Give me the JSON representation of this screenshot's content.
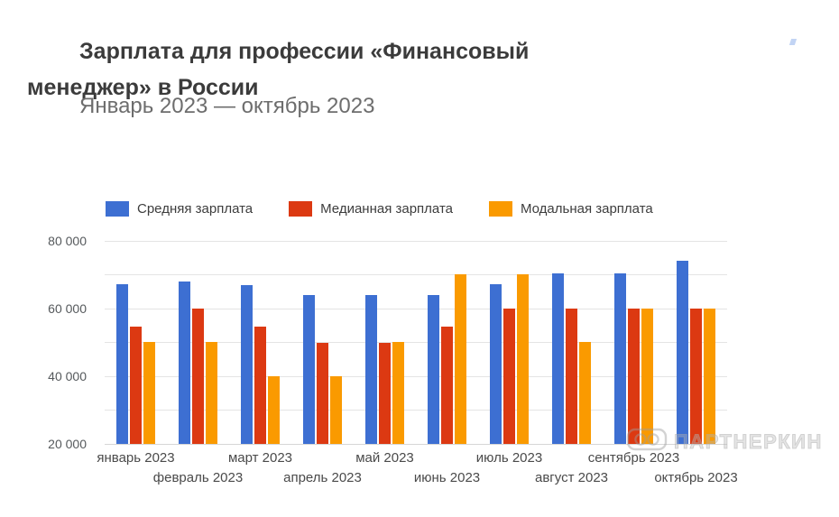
{
  "header": {
    "title_line1": "Зарплата для профессии «Финансовый",
    "title_line2": "менеджер» в России",
    "subtitle": "Январь 2023 — октябрь 2023"
  },
  "watermark": {
    "text": "ПАРТНЕРКИН",
    "logo": "goggles-icon"
  },
  "chart_data": {
    "type": "bar",
    "title": "Зарплата для профессии «Финансовый менеджер» в России",
    "subtitle": "Январь 2023 — октябрь 2023",
    "categories": [
      "январь 2023",
      "февраль 2023",
      "март 2023",
      "апрель 2023",
      "май 2023",
      "июнь 2023",
      "июль 2023",
      "август 2023",
      "сентябрь 2023",
      "октябрь 2023"
    ],
    "series": [
      {
        "name": "Средняя зарплата",
        "color": "#3D6FD2",
        "values": [
          67200,
          67900,
          66900,
          64100,
          64000,
          64100,
          67200,
          70500,
          70500,
          74000
        ]
      },
      {
        "name": "Медианная зарплата",
        "color": "#DC3912",
        "values": [
          54700,
          59900,
          54700,
          49900,
          49900,
          54700,
          59900,
          59900,
          59900,
          59900
        ]
      },
      {
        "name": "Модальная зарплата",
        "color": "#FA9A00",
        "values": [
          50000,
          50000,
          40000,
          40000,
          50000,
          70000,
          70000,
          50000,
          60000,
          60000
        ]
      }
    ],
    "ylim": [
      20000,
      80000
    ],
    "ytick_step": 10000,
    "yticks_labeled": [
      20000,
      40000,
      60000,
      80000
    ],
    "ytick_labels": {
      "20000": "20 000",
      "40000": "40 000",
      "60000": "60 000",
      "80000": "80 000"
    },
    "grid": true,
    "grid_color": "#e4e4e4",
    "legend_position": "top",
    "ylabel": "",
    "xlabel": ""
  }
}
